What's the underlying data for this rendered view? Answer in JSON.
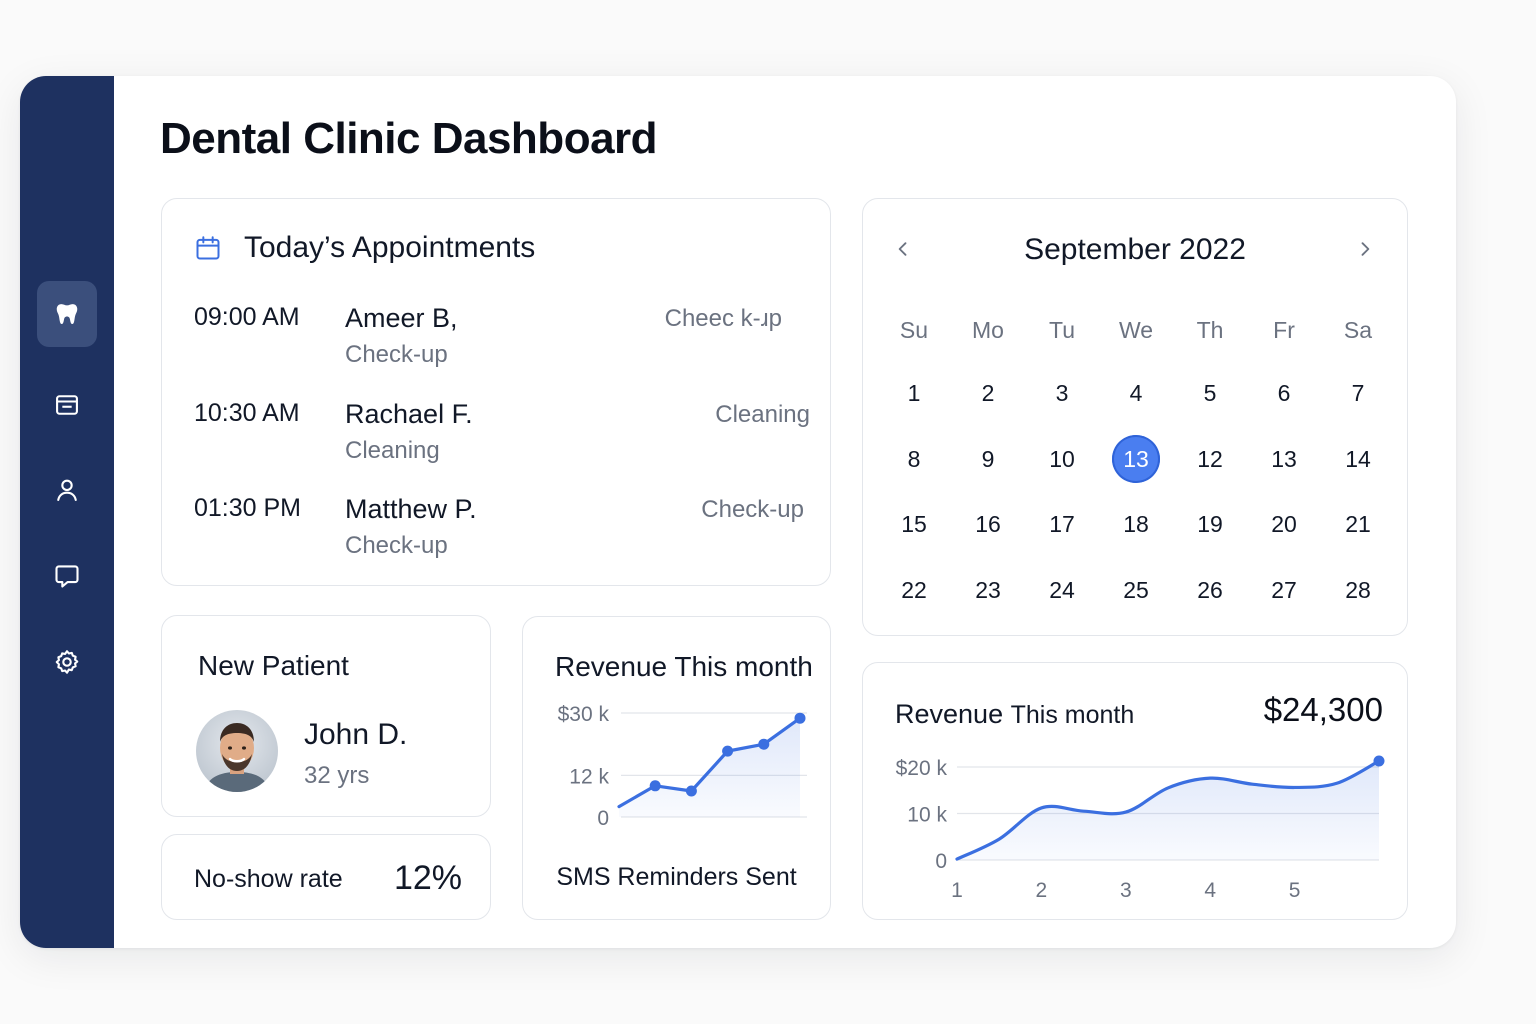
{
  "page": {
    "title": "Dental Clinic Dashboard"
  },
  "sidebar": {
    "items": [
      {
        "icon": "tooth-icon",
        "active": true
      },
      {
        "icon": "inbox-icon",
        "active": false
      },
      {
        "icon": "user-icon",
        "active": false
      },
      {
        "icon": "chat-icon",
        "active": false
      },
      {
        "icon": "gear-icon",
        "active": false
      }
    ]
  },
  "appointments": {
    "title": "Today’s Appointments",
    "rows": [
      {
        "time": "09:00 AM",
        "name": "Ameer B,",
        "sub": "Check-up",
        "type": "Cheec k-ɹp"
      },
      {
        "time": "10:30 AM",
        "name": "Rachael F.",
        "sub": "Cleaning",
        "type": "Cleaning"
      },
      {
        "time": "01:30 PM",
        "name": "Matthew P.",
        "sub": "Check-up",
        "type": "Check-up"
      }
    ]
  },
  "calendar": {
    "title": "September 2022",
    "weekdays": [
      "Su",
      "Mo",
      "Tu",
      "We",
      "Th",
      "Fr",
      "Sa"
    ],
    "weeks": [
      [
        "1",
        "2",
        "3",
        "4",
        "5",
        "6",
        "7"
      ],
      [
        "8",
        "9",
        "10",
        "13",
        "12",
        "13",
        "14"
      ],
      [
        "15",
        "16",
        "17",
        "18",
        "19",
        "20",
        "21"
      ],
      [
        "22",
        "23",
        "24",
        "25",
        "26",
        "27",
        "28"
      ]
    ],
    "selected": {
      "week": 1,
      "day": 3
    },
    "accent": "#4a7ef0"
  },
  "new_patient": {
    "title": "New Patient",
    "name": "John D.",
    "age": "32 yrs"
  },
  "no_show": {
    "label": "No-show rate",
    "value": "12%"
  },
  "revenue_small": {
    "title": "Revenue This month",
    "footer": "SMS Reminders Sent"
  },
  "revenue_big": {
    "title": "Revenue",
    "title_sub": "This month",
    "total": "$24,300"
  },
  "chart_data": [
    {
      "type": "line",
      "title": "Revenue This month",
      "y_ticks": [
        "$30 k",
        "12 k",
        "0"
      ],
      "y_tick_values": [
        30,
        12,
        0
      ],
      "x": [
        1,
        2,
        3,
        4,
        5,
        6
      ],
      "series": [
        {
          "values": [
            3,
            9,
            7.5,
            19,
            21,
            28.5
          ]
        }
      ],
      "markers_at": [
        1,
        2,
        3,
        4,
        5
      ],
      "ylim": [
        0,
        30
      ],
      "grid": true,
      "color": "#3b6fe0"
    },
    {
      "type": "area",
      "title": "Revenue This month",
      "y_ticks": [
        "$20 k",
        "10 k",
        "0"
      ],
      "y_tick_values": [
        20,
        10,
        0
      ],
      "x_ticks": [
        "1",
        "2",
        "3",
        "4",
        "5"
      ],
      "x": [
        1,
        1.5,
        2,
        2.5,
        3,
        3.5,
        4,
        4.5,
        5,
        5.5,
        6
      ],
      "series": [
        {
          "values": [
            0.2,
            4.5,
            11.2,
            10.5,
            10.3,
            15.5,
            17.6,
            16.3,
            15.6,
            16.5,
            21.3
          ]
        }
      ],
      "ylim": [
        0,
        20
      ],
      "grid": true,
      "color": "#3b6fe0"
    }
  ]
}
